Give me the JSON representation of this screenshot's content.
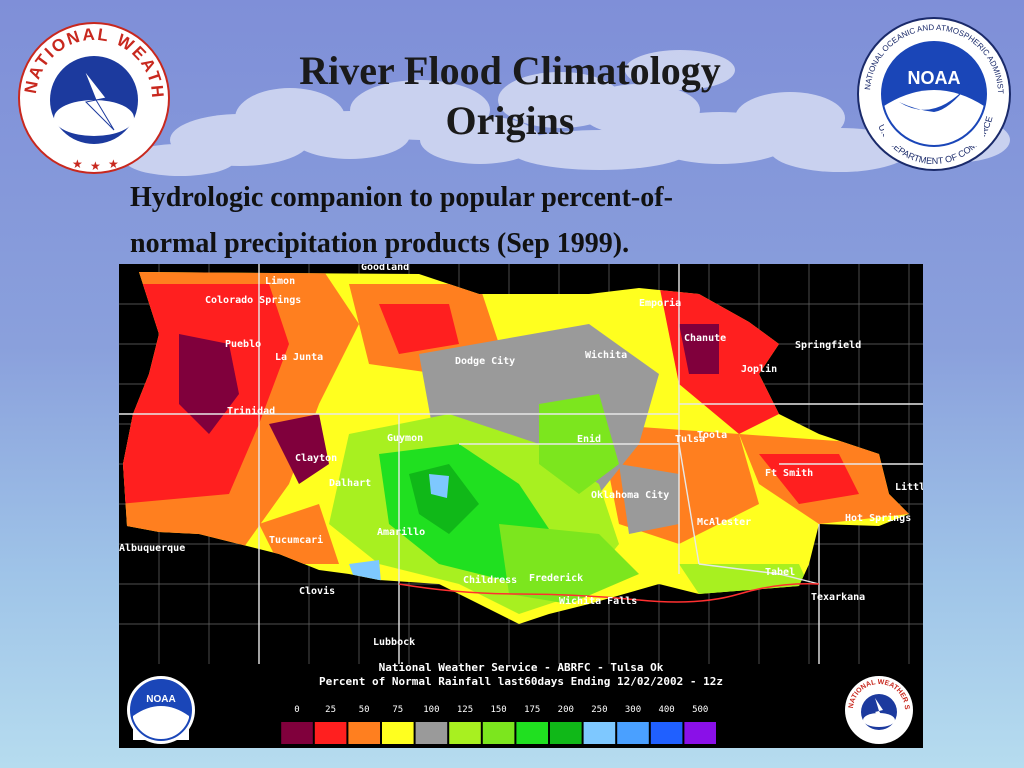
{
  "slide": {
    "title_line1": "River Flood Climatology",
    "title_line2": "Origins",
    "subtitle_line1": "Hydrologic companion to popular percent-of-",
    "subtitle_line2": "normal precipitation products (Sep 1999)."
  },
  "logos": {
    "nws": {
      "text": "NATIONAL WEATHER SERVICE"
    },
    "noaa": {
      "center": "NOAA",
      "ring_top": "NATIONAL OCEANIC AND ATMOSPHERIC ADMINISTRATION",
      "ring_bottom": "U.S. DEPARTMENT OF COMMERCE"
    }
  },
  "map": {
    "header_line1": "National Weather Service - ABRFC - Tulsa Ok",
    "header_line2": "Percent of Normal Rainfall last60days Ending 12/02/2002 - 12z",
    "legend_labels": [
      "0",
      "25",
      "50",
      "75",
      "100",
      "125",
      "150",
      "175",
      "200",
      "250",
      "300",
      "400",
      "500"
    ],
    "legend_colors": [
      "#80003c",
      "#ff1f1f",
      "#ff7f1f",
      "#ffff1f",
      "#9a9a9a",
      "#a8f020",
      "#7ce61e",
      "#20e020",
      "#10b818",
      "#7ec8ff",
      "#4aa0ff",
      "#2060ff",
      "#8a10e8"
    ],
    "cities": [
      "Goodland",
      "Limon",
      "Colorado Springs",
      "Pueblo",
      "La Junta",
      "Dodge City",
      "Emporia",
      "Chanute",
      "Springfield",
      "Wichita",
      "Joplin",
      "Trinidad",
      "Guymon",
      "Enid",
      "Tulsa",
      "Toola",
      "Clayton",
      "Dalhart",
      "Oklahoma City",
      "Ft Smith",
      "Little",
      "Hot Springs",
      "McAlester",
      "Tucumcari",
      "Amarillo",
      "Albuquerque",
      "Childress",
      "Frederick",
      "Wichita Falls",
      "Tabel",
      "Texarkana",
      "Clovis",
      "Lubbock"
    ],
    "inner_logo_noaa": "NOAA",
    "inner_logo_nws": "NATIONAL WEATHER SERVICE"
  }
}
